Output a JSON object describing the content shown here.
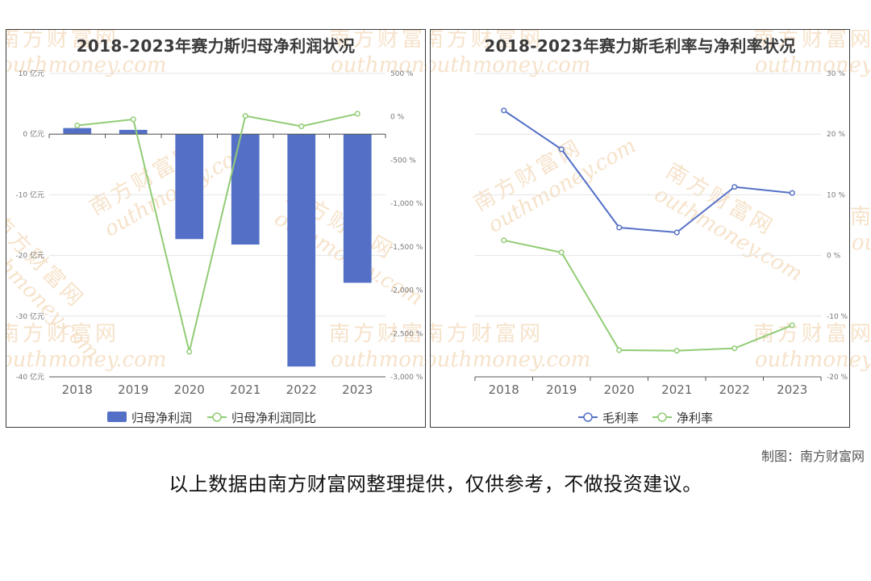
{
  "credit": "制图：南方财富网",
  "disclaimer": "以上数据由南方财富网整理提供，仅供参考，不做投资建议。",
  "watermark": {
    "cn": "南方财富网",
    "en": "outhmoney.com",
    "color": "#f3d9b8"
  },
  "chart_data": [
    {
      "type": "bar",
      "title": "2018-2023年赛力斯归母净利润状况",
      "categories": [
        "2018",
        "2019",
        "2020",
        "2021",
        "2022",
        "2023"
      ],
      "series": [
        {
          "name": "归母净利润",
          "type": "bar",
          "axis": "left",
          "color": "#5470c6",
          "values": [
            1.0,
            0.7,
            -17.3,
            -18.2,
            -38.3,
            -24.5
          ]
        },
        {
          "name": "归母净利润同比",
          "type": "line",
          "axis": "right",
          "color": "#91cc75",
          "values": [
            -100,
            -30,
            -2710,
            10,
            -110,
            35
          ]
        }
      ],
      "y_left": {
        "range": [
          -40,
          10
        ],
        "ticks": [
          10,
          0,
          -10,
          -20,
          -30,
          -40
        ],
        "tick_labels": [
          "10 亿元",
          "0 亿元",
          "-10 亿元",
          "-20 亿元",
          "-30 亿元",
          "-40 亿元"
        ]
      },
      "y_right": {
        "range": [
          -3000,
          500
        ],
        "ticks": [
          500,
          0,
          -500,
          -1000,
          -1500,
          -2000,
          -2500,
          -3000
        ],
        "tick_labels": [
          "500 %",
          "0 %",
          "-500 %",
          "-1,000 %",
          "-1,500 %",
          "-2,000 %",
          "-2,500 %",
          "-3,000 %"
        ]
      },
      "legend": {
        "placement": "bottom",
        "items": [
          {
            "label": "归母净利润",
            "kind": "bar"
          },
          {
            "label": "归母净利润同比",
            "kind": "line"
          }
        ]
      },
      "grid": true
    },
    {
      "type": "line",
      "title": "2018-2023年赛力斯毛利率与净利率状况",
      "categories": [
        "2018",
        "2019",
        "2020",
        "2021",
        "2022",
        "2023"
      ],
      "series": [
        {
          "name": "毛利率",
          "color": "#5470c6",
          "values": [
            23.9,
            17.5,
            4.6,
            3.8,
            11.3,
            10.3
          ]
        },
        {
          "name": "净利率",
          "color": "#91cc75",
          "values": [
            2.5,
            0.5,
            -15.6,
            -15.7,
            -15.3,
            -11.5
          ]
        }
      ],
      "y_right": {
        "range": [
          -20,
          30
        ],
        "ticks": [
          30,
          20,
          10,
          0,
          -10,
          -20
        ],
        "tick_labels": [
          "30 %",
          "20 %",
          "10 %",
          "0 %",
          "-10 %",
          "-20 %"
        ]
      },
      "legend": {
        "placement": "bottom",
        "items": [
          {
            "label": "毛利率",
            "kind": "line"
          },
          {
            "label": "净利率",
            "kind": "line"
          }
        ]
      },
      "grid": true
    }
  ]
}
